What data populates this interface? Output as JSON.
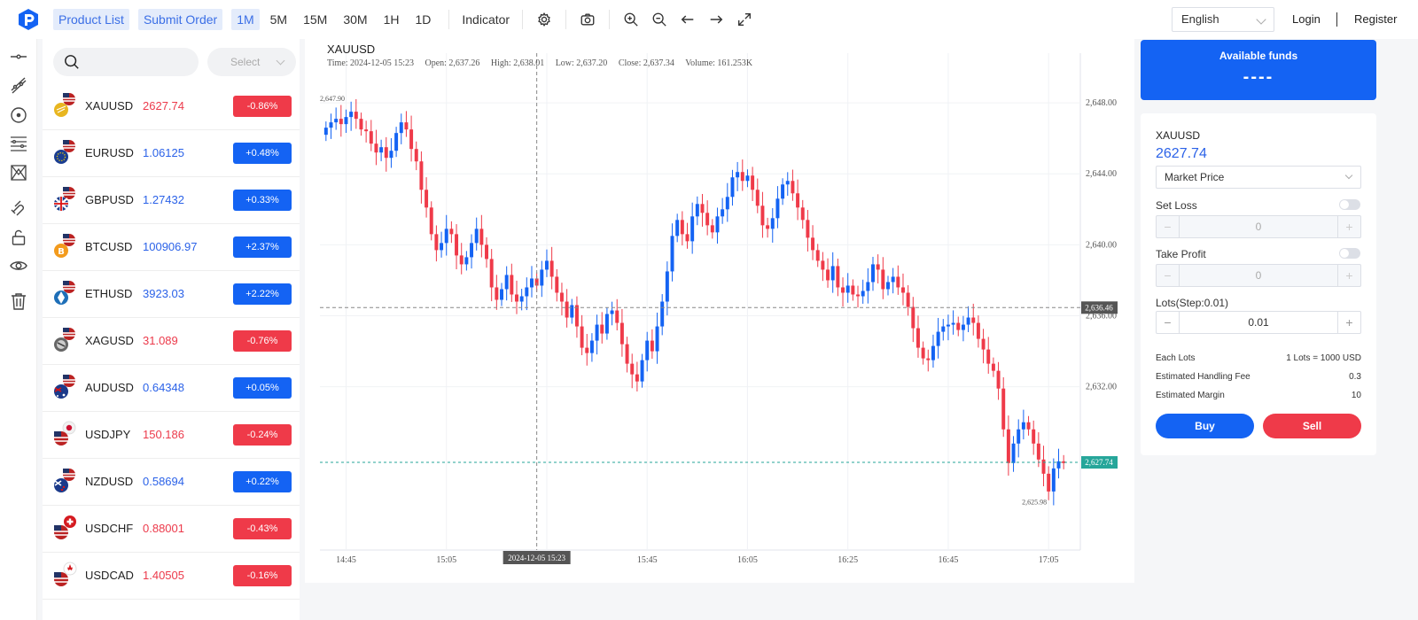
{
  "header": {
    "product_list": "Product List",
    "submit_order": "Submit Order",
    "timeframes": [
      {
        "label": "1M",
        "active": true
      },
      {
        "label": "5M",
        "active": false
      },
      {
        "label": "15M",
        "active": false
      },
      {
        "label": "30M",
        "active": false
      },
      {
        "label": "1H",
        "active": false
      },
      {
        "label": "1D",
        "active": false
      }
    ],
    "indicator": "Indicator",
    "tools": [
      "settings-icon",
      "camera-icon",
      "zoom-in-icon",
      "zoom-out-icon",
      "arrow-left-icon",
      "arrow-right-icon",
      "fullscreen-icon"
    ],
    "language": "English",
    "login": "Login",
    "register": "Register"
  },
  "drawing_tools": [
    "horizontal-line-icon",
    "trend-line-icon",
    "circle-target-icon",
    "fib-lines-icon",
    "pattern-icon",
    "magnet-icon",
    "unlock-icon",
    "eye-icon",
    "trash-icon"
  ],
  "product_list": {
    "search_placeholder": "",
    "select_placeholder": "Select",
    "items": [
      {
        "symbol": "XAUUSD",
        "price": "2627.74",
        "change": "-0.86%",
        "dir": "down",
        "icon": "gold-flag-icon"
      },
      {
        "symbol": "EURUSD",
        "price": "1.06125",
        "change": "+0.48%",
        "dir": "up",
        "icon": "eu-flag-icon"
      },
      {
        "symbol": "GBPUSD",
        "price": "1.27432",
        "change": "+0.33%",
        "dir": "up",
        "icon": "uk-flag-icon"
      },
      {
        "symbol": "BTCUSD",
        "price": "100906.97",
        "change": "+2.37%",
        "dir": "up",
        "icon": "bitcoin-icon"
      },
      {
        "symbol": "ETHUSD",
        "price": "3923.03",
        "change": "+2.22%",
        "dir": "up",
        "icon": "ethereum-icon"
      },
      {
        "symbol": "XAGUSD",
        "price": "31.089",
        "change": "-0.76%",
        "dir": "down",
        "icon": "silver-flag-icon"
      },
      {
        "symbol": "AUDUSD",
        "price": "0.64348",
        "change": "+0.05%",
        "dir": "up",
        "icon": "australia-flag-icon"
      },
      {
        "symbol": "USDJPY",
        "price": "150.186",
        "change": "-0.24%",
        "dir": "down",
        "icon": "japan-flag-icon"
      },
      {
        "symbol": "NZDUSD",
        "price": "0.58694",
        "change": "+0.22%",
        "dir": "up",
        "icon": "newzealand-flag-icon"
      },
      {
        "symbol": "USDCHF",
        "price": "0.88001",
        "change": "-0.43%",
        "dir": "down",
        "icon": "swiss-flag-icon"
      },
      {
        "symbol": "USDCAD",
        "price": "1.40505",
        "change": "-0.16%",
        "dir": "down",
        "icon": "canada-flag-icon"
      }
    ]
  },
  "chart": {
    "symbol": "XAUUSD",
    "ohlc": {
      "time": "Time: 2024-12-05 15:23",
      "open": "Open: 2,637.26",
      "high": "High: 2,638.01",
      "low": "Low: 2,637.20",
      "close": "Close: 2,637.34",
      "volume": "Volume: 161.253K"
    },
    "colors": {
      "up": "#1463f3",
      "down": "#ef3a49",
      "last": "#26a69a"
    }
  },
  "chart_data": {
    "type": "candlestick",
    "title": "XAUUSD",
    "ylim": [
      2622.8,
      2650.8
    ],
    "y_ticks": [
      "2,632.00",
      "2,636.00",
      "2,640.00",
      "2,644.00",
      "2,648.00"
    ],
    "x_ticks": [
      "14:45",
      "15:05",
      "15:25",
      "15:45",
      "16:05",
      "16:25",
      "16:45",
      "17:05"
    ],
    "crosshair": {
      "time": "2024-12-05 15:23",
      "price": "2,636.46"
    },
    "last_price": "2,627.74",
    "max_label": "2,647.90",
    "min_label": "2,625.98",
    "closes": [
      2646.6,
      2646.9,
      2647.1,
      2646.8,
      2647.2,
      2647.5,
      2647.1,
      2646.5,
      2646.4,
      2645.7,
      2645.2,
      2645.5,
      2644.9,
      2645.3,
      2646.3,
      2646.9,
      2646.5,
      2645.4,
      2644.7,
      2643.1,
      2642.1,
      2640.6,
      2639.7,
      2640.1,
      2640.9,
      2640.6,
      2639.4,
      2638.9,
      2639.3,
      2640.1,
      2640.9,
      2640.0,
      2639.2,
      2637.6,
      2636.9,
      2637.5,
      2638.3,
      2637.2,
      2636.8,
      2637.1,
      2637.6,
      2638.1,
      2637.7,
      2638.6,
      2639.1,
      2638.2,
      2637.3,
      2636.8,
      2635.9,
      2636.6,
      2635.4,
      2634.2,
      2633.9,
      2634.6,
      2635.5,
      2635.0,
      2636.1,
      2636.3,
      2635.6,
      2634.4,
      2633.3,
      2632.7,
      2632.3,
      2633.5,
      2634.6,
      2634.0,
      2635.4,
      2636.8,
      2638.5,
      2640.5,
      2641.4,
      2640.6,
      2640.2,
      2641.6,
      2642.3,
      2641.8,
      2641.1,
      2640.7,
      2641.6,
      2642.0,
      2642.7,
      2643.8,
      2644.1,
      2643.6,
      2643.9,
      2643.1,
      2642.2,
      2641.1,
      2640.9,
      2641.5,
      2642.6,
      2643.4,
      2643.6,
      2642.9,
      2642.1,
      2641.4,
      2640.4,
      2639.7,
      2639.1,
      2638.6,
      2638.0,
      2638.8,
      2637.6,
      2637.3,
      2637.7,
      2637.2,
      2637.1,
      2637.4,
      2637.9,
      2638.9,
      2638.6,
      2637.5,
      2637.9,
      2638.2,
      2637.6,
      2637.3,
      2636.5,
      2635.3,
      2634.2,
      2633.6,
      2633.5,
      2634.3,
      2635.1,
      2635.4,
      2635.5,
      2635.6,
      2635.2,
      2635.5,
      2635.9,
      2635.6,
      2634.7,
      2634.1,
      2633.3,
      2632.9,
      2631.9,
      2629.6,
      2627.7,
      2628.8,
      2629.6,
      2630.0,
      2629.6,
      2628.8,
      2627.9,
      2627.1,
      2626.1,
      2627.4,
      2627.8,
      2627.7
    ],
    "note": "closes are approximate per-minute values read from the chart"
  },
  "order_panel": {
    "funds_label": "Available funds",
    "funds_value": "----",
    "symbol": "XAUUSD",
    "price": "2627.74",
    "order_type": "Market Price",
    "set_loss": "Set Loss",
    "set_loss_value": "0",
    "take_profit": "Take Profit",
    "take_profit_value": "0",
    "lots_label": "Lots(Step:0.01)",
    "lots_value": "0.01",
    "each_lots_label": "Each Lots",
    "each_lots_value": "1 Lots = 1000 USD",
    "fee_label": "Estimated Handling Fee",
    "fee_value": "0.3",
    "margin_label": "Estimated Margin",
    "margin_value": "10",
    "buy": "Buy",
    "sell": "Sell"
  }
}
